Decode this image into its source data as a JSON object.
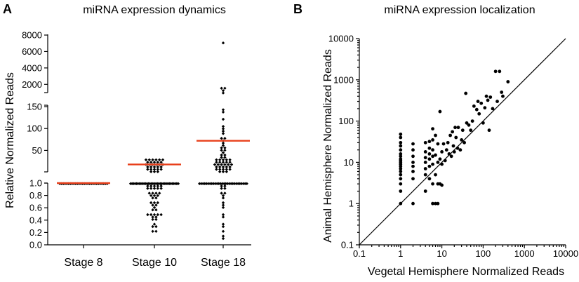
{
  "panel_a": {
    "letter": "A",
    "chart_data": {
      "type": "scatter",
      "title": "miRNA expression dynamics",
      "ylabel": "Relative Normalized Reads",
      "xlabel": "",
      "categories": [
        "Stage 8",
        "Stage 10",
        "Stage 18"
      ],
      "y_axis_segments": [
        {
          "range": [
            0.0,
            1.0
          ],
          "ticks": [
            "0.0",
            "0.2",
            "0.4",
            "0.6",
            "0.8",
            "1.0"
          ]
        },
        {
          "range": [
            1.0,
            150
          ],
          "ticks": [
            "50",
            "100",
            "150"
          ]
        },
        {
          "range": [
            1000,
            8000
          ],
          "ticks": [
            "2000",
            "4000",
            "6000",
            "8000"
          ]
        }
      ],
      "series": [
        {
          "category": "Stage 8",
          "points_summary": "all miRNAs at 1.0",
          "values": [
            1.0,
            1.0,
            1.0,
            1.0,
            1.0,
            1.0,
            1.0,
            1.0,
            1.0,
            1.0,
            1.0,
            1.0,
            1.0,
            1.0,
            1.0,
            1.0,
            1.0,
            1.0,
            1.0,
            1.0,
            1.0,
            1.0,
            1.0,
            1.0,
            1.0,
            1.0,
            1.0,
            1.0
          ],
          "mean": 1.0
        },
        {
          "category": "Stage 10",
          "values": [
            1.0,
            1.0,
            1.0,
            1.0,
            1.0,
            1.0,
            1.0,
            1.0,
            1.0,
            1.0,
            1.0,
            1.0,
            1.0,
            1.0,
            1.0,
            1.0,
            1.0,
            1.0,
            1.0,
            1.0,
            1.0,
            1.0,
            1.0,
            1.0,
            1.0,
            1.0,
            1.0,
            1.0,
            1.0,
            1.0,
            1.0,
            1.0,
            1.0,
            0.95,
            0.95,
            0.95,
            0.95,
            0.95,
            0.9,
            0.9,
            0.9,
            0.9,
            0.9,
            0.85,
            0.85,
            0.85,
            0.85,
            0.8,
            0.8,
            0.8,
            0.75,
            0.75,
            0.7,
            0.7,
            0.7,
            0.65,
            0.65,
            0.6,
            0.55,
            0.55,
            0.5,
            0.5,
            0.5,
            0.5,
            0.5,
            0.45,
            0.45,
            0.4,
            0.4,
            0.35,
            0.3,
            0.3,
            0.2,
            0.2,
            2,
            3,
            4,
            5,
            6,
            7,
            8,
            9,
            10,
            11,
            12,
            13,
            14,
            15,
            16,
            17,
            18,
            19,
            20,
            21,
            22,
            23,
            24,
            25,
            26,
            27,
            28,
            29,
            30,
            31
          ],
          "mean": 18
        },
        {
          "category": "Stage 18",
          "values": [
            1.0,
            1.0,
            1.0,
            1.0,
            1.0,
            1.0,
            1.0,
            1.0,
            1.0,
            1.0,
            1.0,
            1.0,
            1.0,
            1.0,
            1.0,
            1.0,
            1.0,
            1.0,
            1.0,
            1.0,
            1.0,
            1.0,
            1.0,
            1.0,
            1.0,
            1.0,
            1.0,
            1.0,
            0.95,
            0.95,
            0.9,
            0.9,
            0.85,
            0.85,
            0.8,
            0.75,
            0.7,
            0.65,
            0.6,
            0.5,
            0.45,
            0.35,
            0.3,
            0.2,
            0.15,
            0.12,
            2,
            3,
            4,
            5,
            6,
            7,
            8,
            9,
            10,
            11,
            12,
            13,
            14,
            15,
            16,
            17,
            18,
            19,
            20,
            21,
            22,
            23,
            24,
            25,
            26,
            27,
            28,
            29,
            30,
            32,
            35,
            38,
            42,
            45,
            48,
            52,
            55,
            58,
            62,
            68,
            72,
            75,
            78,
            88,
            95,
            100,
            105,
            120,
            135,
            145,
            1000,
            1200,
            1400,
            1500,
            7000
          ],
          "mean": 72
        }
      ],
      "mean_line_color": "#e8401c",
      "point_color": "#000000"
    }
  },
  "panel_b": {
    "letter": "B",
    "chart_data": {
      "type": "scatter",
      "title": "miRNA expression localization",
      "xlabel": "Vegetal Hemisphere Normalized Reads",
      "ylabel": "Animal Hemisphere Normalized Reads",
      "x_scale": "log",
      "y_scale": "log",
      "xlim": [
        0.1,
        10000
      ],
      "ylim": [
        0.1,
        10000
      ],
      "x_ticks": [
        "0.1",
        "1",
        "10",
        "100",
        "1000",
        "10000"
      ],
      "y_ticks": [
        "0.1",
        "1",
        "10",
        "100",
        "1000",
        "10000"
      ],
      "reference_line": "y = x",
      "points": [
        [
          1,
          1
        ],
        [
          1,
          2
        ],
        [
          1,
          3
        ],
        [
          1,
          4
        ],
        [
          1,
          5
        ],
        [
          1,
          6
        ],
        [
          1,
          7
        ],
        [
          1,
          8
        ],
        [
          1,
          9
        ],
        [
          1,
          10
        ],
        [
          1,
          11
        ],
        [
          1,
          12
        ],
        [
          1,
          14
        ],
        [
          1,
          16
        ],
        [
          1,
          20
        ],
        [
          1,
          25
        ],
        [
          1,
          30
        ],
        [
          1,
          40
        ],
        [
          1,
          48
        ],
        [
          2,
          1
        ],
        [
          2,
          4
        ],
        [
          2,
          6
        ],
        [
          2,
          8
        ],
        [
          2,
          10
        ],
        [
          2,
          14
        ],
        [
          2,
          20
        ],
        [
          2,
          28
        ],
        [
          4,
          2
        ],
        [
          4,
          5
        ],
        [
          4,
          7
        ],
        [
          4,
          10
        ],
        [
          4,
          13
        ],
        [
          4,
          18
        ],
        [
          4,
          30
        ],
        [
          5,
          4
        ],
        [
          5,
          8
        ],
        [
          5,
          12
        ],
        [
          5,
          16
        ],
        [
          5,
          22
        ],
        [
          5,
          32
        ],
        [
          6,
          1
        ],
        [
          6,
          3
        ],
        [
          6,
          9
        ],
        [
          6,
          14
        ],
        [
          6,
          20
        ],
        [
          6,
          35
        ],
        [
          6,
          65
        ],
        [
          7,
          1
        ],
        [
          7,
          5
        ],
        [
          7,
          15
        ],
        [
          7,
          45
        ],
        [
          8,
          1
        ],
        [
          8,
          3
        ],
        [
          8,
          10
        ],
        [
          8,
          28
        ],
        [
          9,
          3
        ],
        [
          9,
          12
        ],
        [
          9,
          170
        ],
        [
          10,
          2.8
        ],
        [
          10,
          9
        ],
        [
          10,
          18
        ],
        [
          11,
          28
        ],
        [
          12,
          11
        ],
        [
          13,
          20
        ],
        [
          14,
          30
        ],
        [
          15,
          16
        ],
        [
          16,
          45
        ],
        [
          17,
          14
        ],
        [
          18,
          55
        ],
        [
          19,
          25
        ],
        [
          20,
          18
        ],
        [
          21,
          70
        ],
        [
          22,
          40
        ],
        [
          24,
          22
        ],
        [
          25,
          70
        ],
        [
          28,
          20
        ],
        [
          30,
          35
        ],
        [
          32,
          60
        ],
        [
          35,
          30
        ],
        [
          38,
          470
        ],
        [
          40,
          90
        ],
        [
          45,
          80
        ],
        [
          50,
          60
        ],
        [
          55,
          100
        ],
        [
          60,
          230
        ],
        [
          70,
          190
        ],
        [
          75,
          300
        ],
        [
          80,
          150
        ],
        [
          90,
          270
        ],
        [
          100,
          90
        ],
        [
          110,
          210
        ],
        [
          120,
          400
        ],
        [
          130,
          320
        ],
        [
          140,
          60
        ],
        [
          150,
          380
        ],
        [
          170,
          200
        ],
        [
          200,
          1600
        ],
        [
          220,
          300
        ],
        [
          250,
          1600
        ],
        [
          280,
          500
        ],
        [
          300,
          400
        ],
        [
          400,
          900
        ]
      ],
      "point_color": "#000000"
    }
  }
}
